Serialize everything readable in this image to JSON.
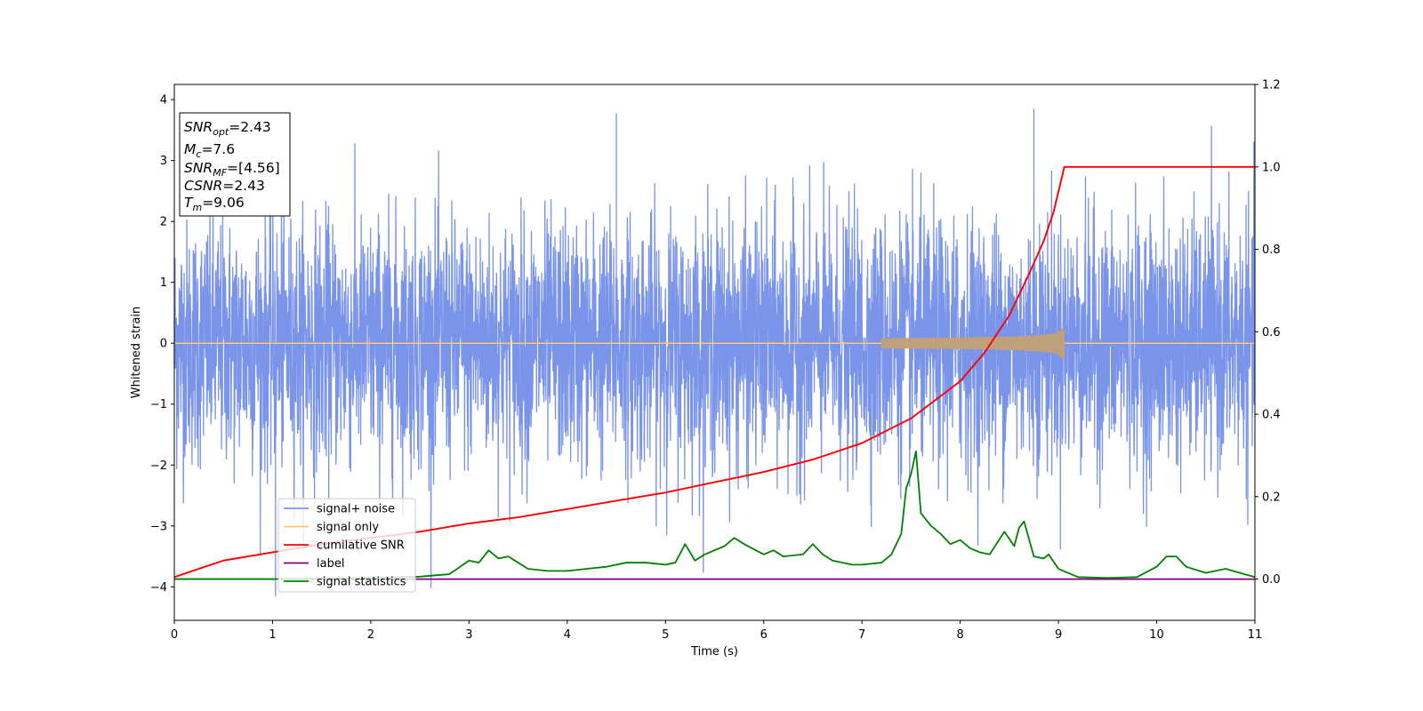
{
  "chart_data": {
    "type": "line",
    "xlabel": "Time (s)",
    "ylabel": "Whitened strain",
    "xlim": [
      0,
      11
    ],
    "ylim": [
      -4.55,
      4.25
    ],
    "y2lim": [
      -0.1,
      1.2
    ],
    "x_ticks": [
      0,
      1,
      2,
      3,
      4,
      5,
      6,
      7,
      8,
      9,
      10,
      11
    ],
    "y_ticks": [
      4,
      3,
      2,
      1,
      0,
      -1,
      -2,
      -3,
      -4
    ],
    "y_tick_labels": [
      "4",
      "3",
      "2",
      "1",
      "0",
      "−1",
      "−2",
      "−3",
      "−4"
    ],
    "y2_ticks": [
      1.2,
      1.0,
      0.8,
      0.6,
      0.4,
      0.2,
      0.0
    ],
    "y2_tick_labels": [
      "1.2",
      "1.0",
      "0.8",
      "0.6",
      "0.4",
      "0.2",
      "0.0"
    ],
    "legend_position": "lower-left",
    "annotation": {
      "snr_opt": {
        "symbol": "SNR",
        "sub": "opt",
        "value": "=2.43"
      },
      "mc": {
        "symbol": "M",
        "sub": "c",
        "value": "=7.6"
      },
      "snr_mf": {
        "symbol": "SNR",
        "sub": "MF",
        "value": "=[4.56]"
      },
      "csnr": {
        "symbol": "CSNR",
        "sub": "",
        "value": "=2.43"
      },
      "tm": {
        "symbol": "T",
        "sub": "m",
        "value": "=9.06"
      }
    },
    "series": [
      {
        "name": "signal+ noise",
        "color": "#7994e8",
        "axis": "left",
        "description_stats": {
          "mean": 0.0,
          "std": 1.0,
          "min": -4.15,
          "max": 3.85,
          "peak_times": [
            1.03,
            4.5,
            8.75
          ]
        }
      },
      {
        "name": "signal only",
        "color": "#ffc878",
        "axis": "left",
        "merger_time": 9.06,
        "peak_amplitude": 0.25
      },
      {
        "name": "cumilative SNR",
        "color": "#ff0000",
        "axis": "right",
        "x": [
          0,
          0.5,
          1,
          1.5,
          2,
          2.5,
          3,
          3.5,
          4,
          4.5,
          5,
          5.5,
          6,
          6.5,
          7,
          7.5,
          8,
          8.25,
          8.5,
          8.7,
          8.85,
          8.95,
          9.0,
          9.06,
          11
        ],
        "values": [
          0.005,
          0.045,
          0.065,
          0.085,
          0.1,
          0.115,
          0.135,
          0.15,
          0.17,
          0.19,
          0.21,
          0.235,
          0.26,
          0.29,
          0.33,
          0.39,
          0.48,
          0.55,
          0.64,
          0.74,
          0.82,
          0.89,
          0.94,
          1.0,
          1.0
        ]
      },
      {
        "name": "label",
        "color": "#800080",
        "axis": "right",
        "x": [
          0,
          11
        ],
        "values": [
          0,
          0
        ]
      },
      {
        "name": "signal statistics",
        "color": "#008000",
        "axis": "right",
        "x": [
          0,
          0.5,
          1,
          1.5,
          2,
          2.5,
          2.8,
          3,
          3.1,
          3.2,
          3.3,
          3.4,
          3.5,
          3.6,
          3.8,
          4,
          4.2,
          4.4,
          4.6,
          4.8,
          5,
          5.1,
          5.2,
          5.3,
          5.4,
          5.6,
          5.7,
          5.8,
          6,
          6.1,
          6.2,
          6.4,
          6.5,
          6.6,
          6.7,
          6.9,
          7,
          7.2,
          7.3,
          7.4,
          7.45,
          7.5,
          7.55,
          7.6,
          7.7,
          7.8,
          7.9,
          8,
          8.1,
          8.2,
          8.3,
          8.45,
          8.55,
          8.6,
          8.65,
          8.75,
          8.85,
          8.9,
          9,
          9.2,
          9.5,
          9.8,
          10,
          10.1,
          10.2,
          10.3,
          10.5,
          10.7,
          11
        ],
        "values": [
          0,
          0,
          0,
          0.001,
          0.003,
          0.006,
          0.012,
          0.045,
          0.04,
          0.07,
          0.05,
          0.055,
          0.04,
          0.025,
          0.02,
          0.02,
          0.025,
          0.03,
          0.04,
          0.04,
          0.035,
          0.04,
          0.085,
          0.045,
          0.06,
          0.08,
          0.1,
          0.085,
          0.06,
          0.07,
          0.055,
          0.06,
          0.085,
          0.06,
          0.045,
          0.035,
          0.035,
          0.04,
          0.06,
          0.11,
          0.22,
          0.255,
          0.31,
          0.16,
          0.13,
          0.11,
          0.085,
          0.095,
          0.075,
          0.065,
          0.06,
          0.115,
          0.08,
          0.125,
          0.14,
          0.055,
          0.05,
          0.06,
          0.025,
          0.005,
          0.003,
          0.005,
          0.03,
          0.055,
          0.055,
          0.03,
          0.015,
          0.025,
          0.005
        ]
      }
    ]
  }
}
